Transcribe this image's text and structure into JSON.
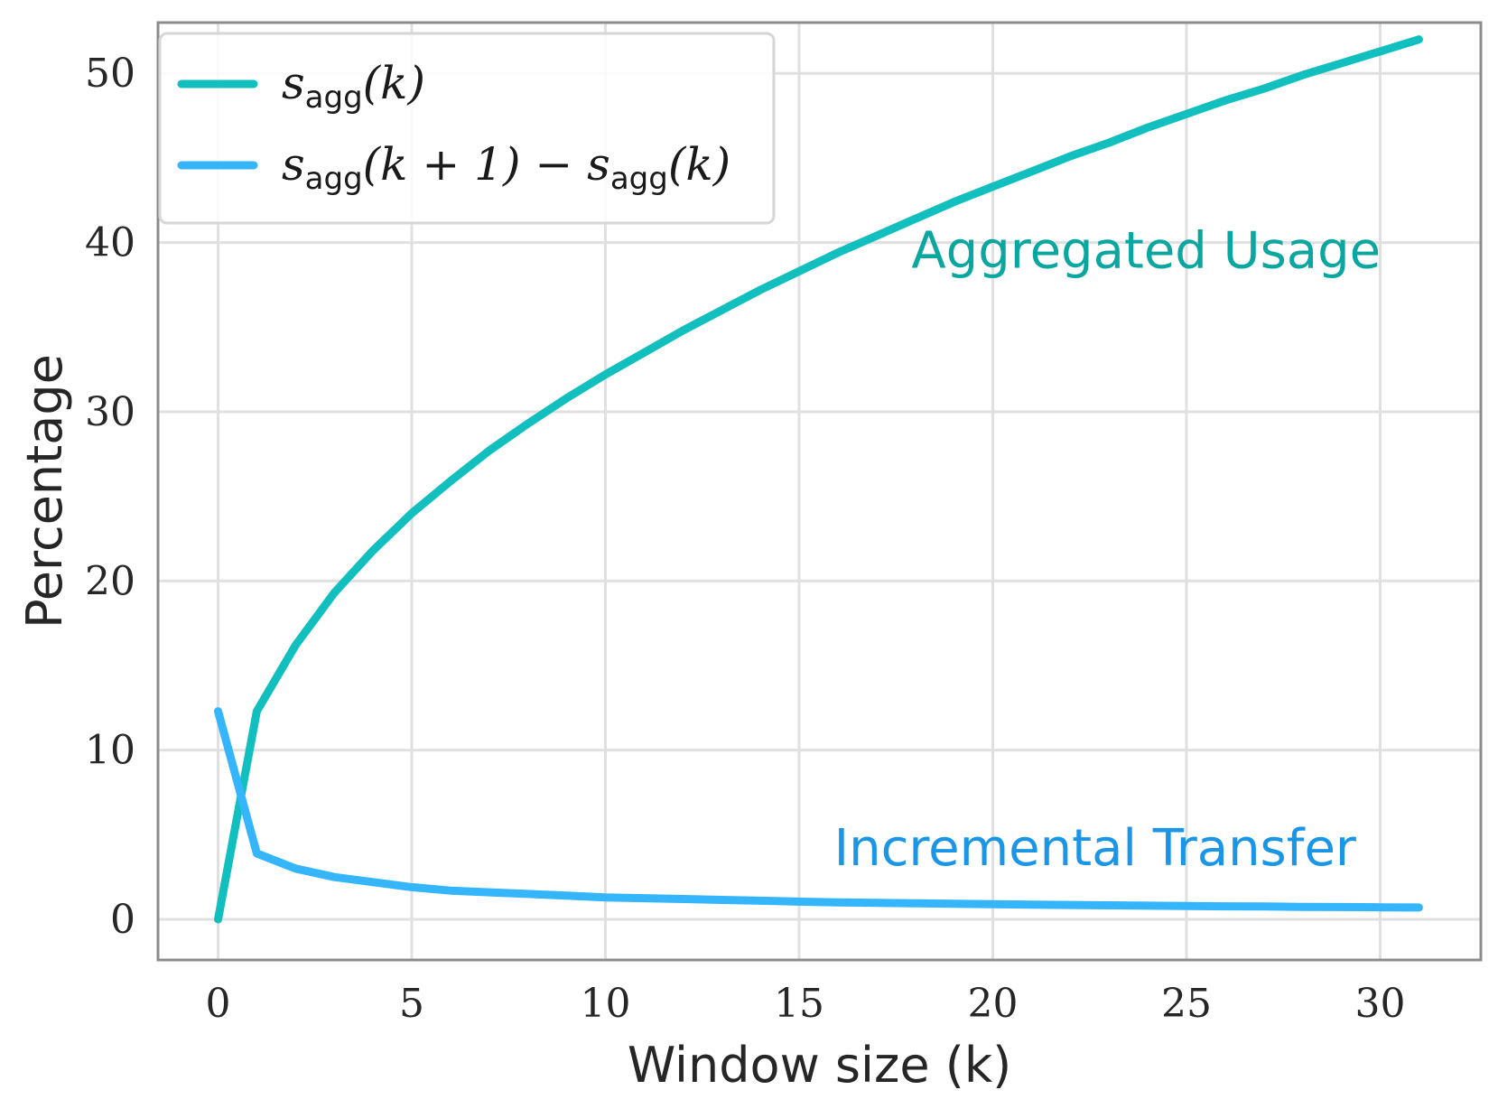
{
  "chart_data": {
    "type": "line",
    "xlabel": "Window size (k)",
    "ylabel": "Percentage",
    "xlim": [
      -1.55,
      32.6
    ],
    "ylim": [
      -2.4,
      53.0
    ],
    "xticks": [
      0,
      5,
      10,
      15,
      20,
      25,
      30
    ],
    "yticks": [
      0,
      10,
      20,
      30,
      40,
      50
    ],
    "grid": true,
    "legend_position": "top-left",
    "colors": {
      "agg": "#12bfbf",
      "inc": "#35b5fb",
      "agg_text": "#0aa6a0",
      "inc_text": "#1b96e6",
      "grid": "#e0e0e0",
      "spine": "#8c8c8c"
    },
    "legend": [
      {
        "series": "agg",
        "base": "s",
        "sub": "agg",
        "arg": "(k)"
      },
      {
        "series": "inc",
        "base": "s",
        "sub": "agg",
        "arg": "(k + 1) − ",
        "base2": "s",
        "sub2": "agg",
        "arg2": "(k)"
      }
    ],
    "annotations": [
      {
        "text": "Aggregated Usage",
        "series": "agg",
        "x": 17.9,
        "y": 38.5
      },
      {
        "text": "Incremental Transfer",
        "series": "inc",
        "x": 15.9,
        "y": 3.2
      }
    ],
    "x": [
      0,
      1,
      2,
      3,
      4,
      5,
      6,
      7,
      8,
      9,
      10,
      11,
      12,
      13,
      14,
      15,
      16,
      17,
      18,
      19,
      20,
      21,
      22,
      23,
      24,
      25,
      26,
      27,
      28,
      29,
      30,
      31
    ],
    "series": [
      {
        "key": "agg",
        "values": [
          0,
          12.3,
          16.2,
          19.3,
          21.8,
          24.0,
          25.9,
          27.7,
          29.3,
          30.8,
          32.2,
          33.5,
          34.8,
          36.0,
          37.2,
          38.3,
          39.4,
          40.4,
          41.4,
          42.4,
          43.3,
          44.2,
          45.1,
          45.9,
          46.8,
          47.6,
          48.4,
          49.1,
          49.9,
          50.6,
          51.3,
          52.0
        ]
      },
      {
        "key": "inc",
        "values": [
          12.3,
          3.9,
          3.0,
          2.5,
          2.2,
          1.9,
          1.7,
          1.6,
          1.5,
          1.4,
          1.3,
          1.25,
          1.2,
          1.15,
          1.1,
          1.05,
          1.0,
          0.98,
          0.95,
          0.92,
          0.9,
          0.87,
          0.85,
          0.83,
          0.81,
          0.79,
          0.77,
          0.76,
          0.74,
          0.73,
          0.71,
          0.7
        ]
      }
    ]
  }
}
